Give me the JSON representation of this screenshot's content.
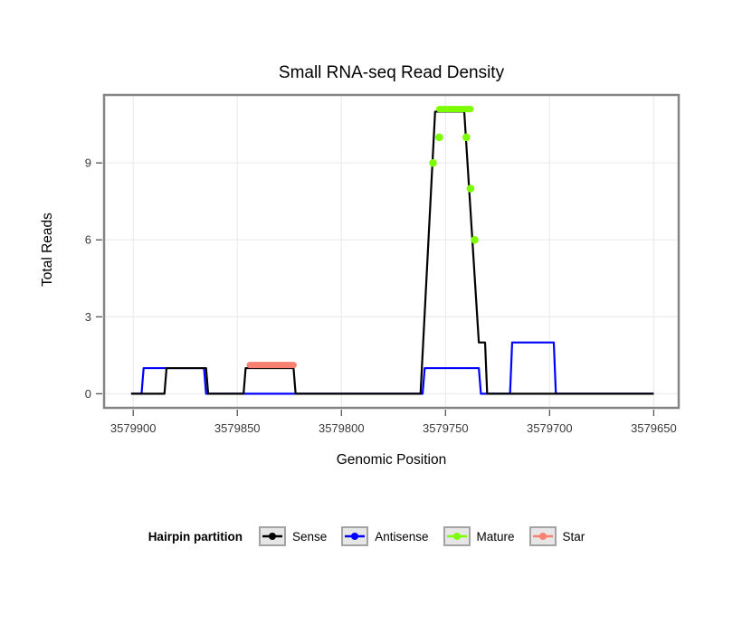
{
  "chart_data": {
    "type": "line",
    "title": "Small RNA-seq Read Density",
    "xlabel": "Genomic Position",
    "ylabel": "Total Reads",
    "x_ticks": [
      3579900,
      3579850,
      3579800,
      3579750,
      3579700,
      3579650
    ],
    "y_ticks": [
      0,
      3,
      6,
      9
    ],
    "xlim": [
      3579914,
      3579638
    ],
    "ylim": [
      -0.55,
      11.65
    ],
    "x_axis_direction": "decreasing",
    "grid": true,
    "grid_color": "#ededed",
    "plot_border_color": "#858585",
    "tick_color": "#555555",
    "tick_label_color": "#383838",
    "series": [
      {
        "name": "Antisense",
        "color": "#0000ff",
        "line": [
          [
            3579901,
            0
          ],
          [
            3579896,
            0
          ],
          [
            3579895,
            1
          ],
          [
            3579866,
            1
          ],
          [
            3579865,
            0
          ],
          [
            3579761,
            0
          ],
          [
            3579760,
            1
          ],
          [
            3579734,
            1
          ],
          [
            3579733,
            0
          ],
          [
            3579719,
            0
          ],
          [
            3579718,
            2
          ],
          [
            3579698,
            2
          ],
          [
            3579697,
            0
          ],
          [
            3579650,
            0
          ]
        ]
      },
      {
        "name": "Sense",
        "color": "#000000",
        "line": [
          [
            3579901,
            0
          ],
          [
            3579885,
            0
          ],
          [
            3579884,
            1
          ],
          [
            3579865,
            1
          ],
          [
            3579864,
            0
          ],
          [
            3579847,
            0
          ],
          [
            3579846,
            1
          ],
          [
            3579823,
            1
          ],
          [
            3579822,
            0
          ],
          [
            3579762,
            0
          ],
          [
            3579755,
            11
          ],
          [
            3579741,
            11
          ],
          [
            3579734,
            2
          ],
          [
            3579731,
            2
          ],
          [
            3579730,
            0
          ],
          [
            3579650,
            0
          ]
        ]
      },
      {
        "name": "Star",
        "color": "#fa8072",
        "segment": [
          3579844,
          3579823,
          1.12
        ]
      },
      {
        "name": "Mature",
        "color": "#7cfc00",
        "segment": [
          3579753,
          3579738,
          11.1
        ],
        "dots": [
          [
            3579756,
            9
          ],
          [
            3579753,
            10
          ],
          [
            3579740,
            10
          ],
          [
            3579738,
            8
          ],
          [
            3579736,
            6
          ]
        ]
      }
    ],
    "legend": {
      "title": "Hairpin partition",
      "entries": [
        {
          "label": "Sense"
        },
        {
          "label": "Antisense"
        },
        {
          "label": "Mature"
        },
        {
          "label": "Star"
        }
      ],
      "key_box_fill": "#e6e6e6",
      "key_box_border": "#a3a3a3"
    }
  }
}
